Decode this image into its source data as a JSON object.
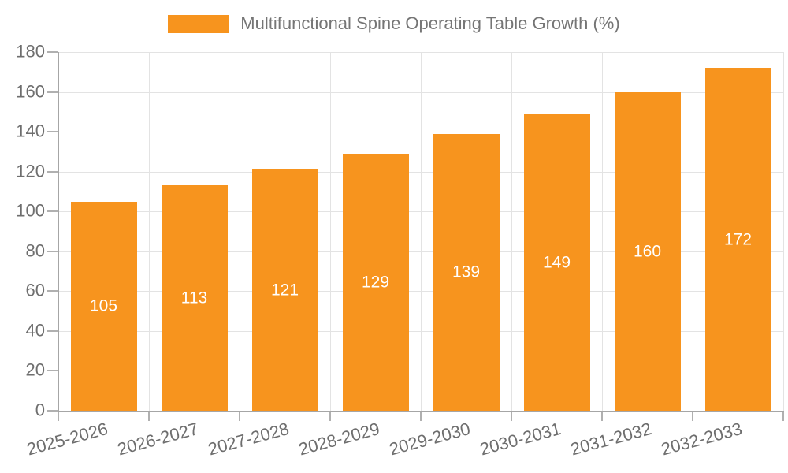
{
  "chart_data": {
    "type": "bar",
    "title": "Multifunctional Spine Operating Table Growth (%)",
    "categories": [
      "2025-2026",
      "2026-2027",
      "2027-2028",
      "2028-2029",
      "2029-2030",
      "2030-2031",
      "2031-2032",
      "2032-2033"
    ],
    "values": [
      105,
      113,
      121,
      129,
      139,
      149,
      160,
      172
    ],
    "ylim": [
      0,
      180
    ],
    "ytick_step": 20,
    "ytick_labels": [
      "0",
      "20",
      "40",
      "60",
      "80",
      "100",
      "120",
      "140",
      "160",
      "180"
    ],
    "grid": "horizontal and vertical gridlines on",
    "legend_position": "top-center",
    "value_labels": "white, centered inside bars",
    "colors": {
      "bar": "#f7941e",
      "bar_value_label": "#ffffff",
      "grid": "#e3e3e3",
      "axis_line": "#a6a6a6",
      "tick": "#b0b0b0",
      "axis_text": "#6e6e6e",
      "legend_text": "#757575",
      "background": "#ffffff"
    }
  }
}
